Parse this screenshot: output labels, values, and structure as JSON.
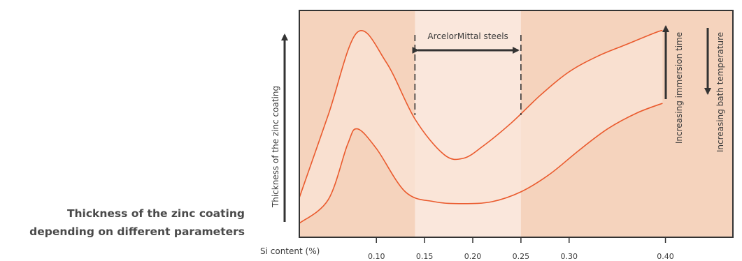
{
  "caption": {
    "line1": "Thickness of the zinc coating",
    "line2": "depending on different parameters"
  },
  "chart_data": {
    "type": "area",
    "title": "",
    "xlabel": "Si content (%)",
    "ylabel": "Thickness of the zinc coating",
    "xlim": [
      0.02,
      0.47
    ],
    "x_ticks": [
      "0.10",
      "0.15",
      "0.20",
      "0.25",
      "0.30",
      "0.40"
    ],
    "highlight_band": {
      "label": "ArcelorMittal steels",
      "x": [
        0.14,
        0.25
      ]
    },
    "y_unit": "relative thickness (0-1)",
    "ylim": [
      0,
      1
    ],
    "series": [
      {
        "role": "upper",
        "x": [
          0.02,
          0.05,
          0.08,
          0.11,
          0.14,
          0.17,
          0.19,
          0.21,
          0.24,
          0.27,
          0.3,
          0.33,
          0.36,
          0.39,
          0.397
        ],
        "values": [
          0.13,
          0.55,
          0.97,
          0.82,
          0.53,
          0.35,
          0.33,
          0.39,
          0.51,
          0.65,
          0.77,
          0.85,
          0.91,
          0.97,
          0.98
        ]
      },
      {
        "role": "lower",
        "x": [
          0.02,
          0.05,
          0.07,
          0.08,
          0.1,
          0.13,
          0.16,
          0.19,
          0.22,
          0.25,
          0.28,
          0.31,
          0.34,
          0.37,
          0.397
        ],
        "values": [
          0.0,
          0.12,
          0.4,
          0.48,
          0.38,
          0.16,
          0.11,
          0.1,
          0.11,
          0.16,
          0.25,
          0.37,
          0.48,
          0.56,
          0.61
        ]
      }
    ],
    "annotations": [
      "Increasing immersion time",
      "Increasing bath temperature"
    ],
    "colors": {
      "background": "#f5d3bd",
      "band": "#fae7dc",
      "envelope_fill": "#f9e4d7",
      "curve": "#ea5a2d",
      "frame": "#333333"
    }
  }
}
